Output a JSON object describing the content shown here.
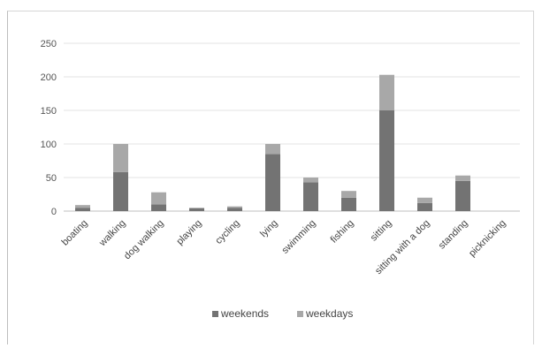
{
  "chart_data": {
    "type": "bar",
    "stacked": true,
    "categories": [
      "boating",
      "walking",
      "dog walking",
      "playing",
      "cycling",
      "lying",
      "swimming",
      "fishing",
      "sitting",
      "sitting with a dog",
      "standing",
      "picknicking"
    ],
    "series": [
      {
        "name": "weekends",
        "values": [
          5,
          58,
          10,
          4,
          5,
          85,
          43,
          20,
          150,
          12,
          45,
          0
        ],
        "color": "#737373"
      },
      {
        "name": "weekdays",
        "values": [
          4,
          42,
          18,
          1,
          2,
          15,
          7,
          10,
          53,
          8,
          8,
          0
        ],
        "color": "#a8a8a8"
      }
    ],
    "ylim": [
      0,
      250
    ],
    "yticks": [
      0,
      50,
      100,
      150,
      200,
      250
    ],
    "grid": true,
    "legend": "bottom",
    "title": "",
    "xlabel": "",
    "ylabel": ""
  }
}
